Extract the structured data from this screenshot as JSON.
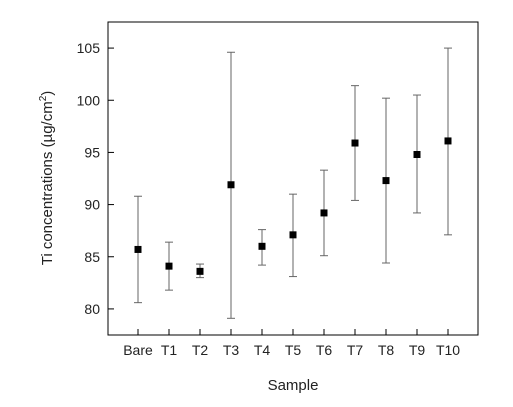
{
  "chart_data": {
    "type": "scatter",
    "title": "",
    "xlabel": "Sample",
    "ylabel_main": "Ti concentrations (µg/cm",
    "ylabel_sup": "2",
    "ylabel_close": ")",
    "categories": [
      "Bare",
      "T1",
      "T2",
      "T3",
      "T4",
      "T5",
      "T6",
      "T7",
      "T8",
      "T9",
      "T10"
    ],
    "values": [
      85.7,
      84.1,
      83.6,
      91.9,
      86.0,
      87.1,
      89.2,
      95.9,
      92.3,
      94.8,
      96.1
    ],
    "error_low": [
      80.6,
      81.8,
      83.0,
      79.1,
      84.2,
      83.1,
      85.1,
      90.4,
      84.4,
      89.2,
      87.1
    ],
    "error_high": [
      90.8,
      86.4,
      84.3,
      104.6,
      87.6,
      91.0,
      93.3,
      101.4,
      100.2,
      100.5,
      105.0
    ],
    "ylim": [
      77.5,
      107.5
    ],
    "yticks": [
      80,
      85,
      90,
      95,
      100,
      105
    ],
    "grid": false,
    "marker": "square",
    "color": "#000000",
    "errorbar_color": "#666666"
  }
}
